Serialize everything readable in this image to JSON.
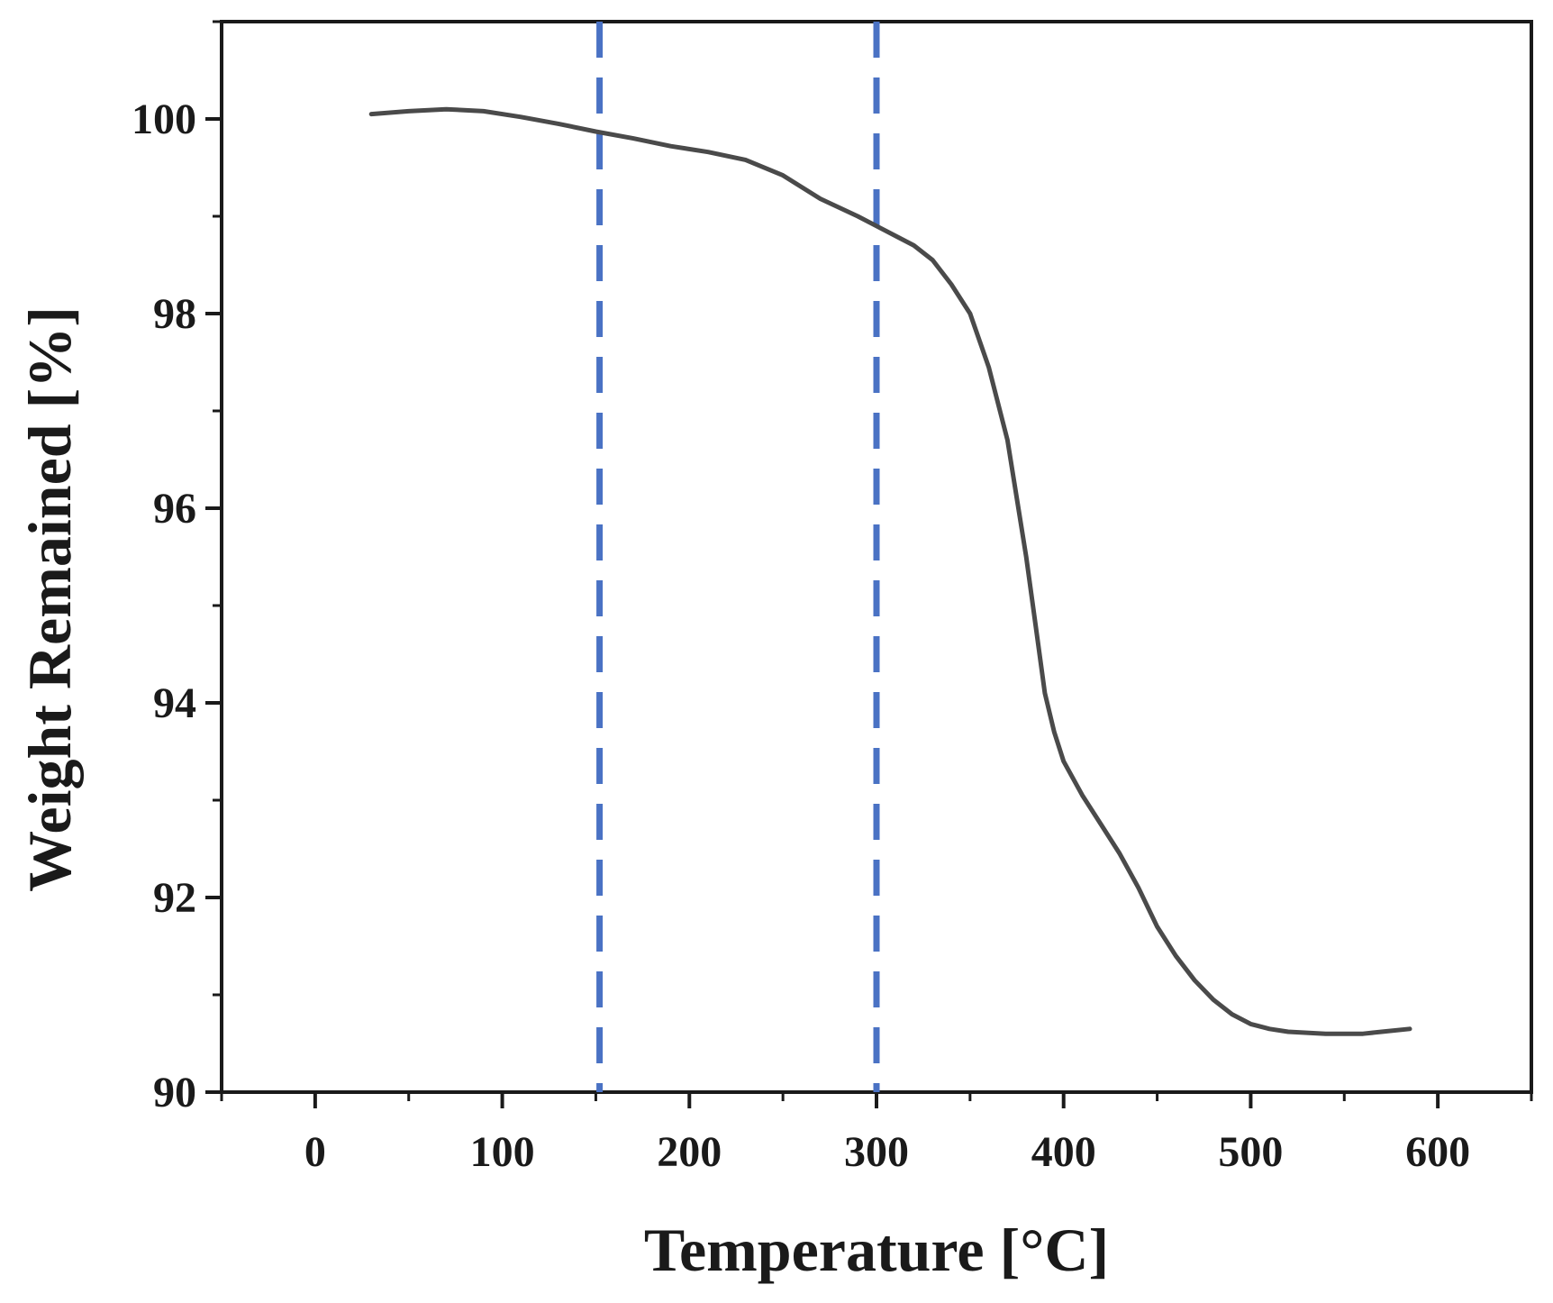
{
  "chart_data": {
    "type": "line",
    "xlabel": "Temperature [°C]",
    "ylabel": "Weight Remained [%]",
    "xlim": [
      -50,
      650
    ],
    "ylim": [
      90,
      101
    ],
    "xticks": [
      0,
      100,
      200,
      300,
      400,
      500,
      600
    ],
    "yticks": [
      90,
      92,
      94,
      96,
      98,
      100
    ],
    "grid": false,
    "series": [
      {
        "color": "#4a4a4a",
        "x": [
          30,
          50,
          70,
          90,
          110,
          130,
          150,
          170,
          190,
          210,
          230,
          250,
          270,
          290,
          300,
          310,
          320,
          330,
          340,
          350,
          360,
          370,
          375,
          380,
          385,
          390,
          395,
          400,
          410,
          420,
          430,
          440,
          450,
          460,
          470,
          480,
          490,
          500,
          510,
          520,
          530,
          540,
          550,
          560,
          570,
          585
        ],
        "y": [
          100.05,
          100.08,
          100.1,
          100.08,
          100.02,
          99.95,
          99.87,
          99.8,
          99.72,
          99.66,
          99.58,
          99.42,
          99.18,
          99.0,
          98.9,
          98.8,
          98.7,
          98.55,
          98.3,
          98.0,
          97.45,
          96.7,
          96.1,
          95.5,
          94.8,
          94.1,
          93.7,
          93.4,
          93.05,
          92.75,
          92.45,
          92.1,
          91.7,
          91.4,
          91.15,
          90.95,
          90.8,
          90.7,
          90.65,
          90.62,
          90.61,
          90.6,
          90.6,
          90.6,
          90.62,
          90.65
        ]
      }
    ],
    "vlines": [
      {
        "x": 152,
        "color": "#4a72c4",
        "style": "dashed"
      },
      {
        "x": 300,
        "color": "#4a72c4",
        "style": "dashed"
      }
    ]
  }
}
